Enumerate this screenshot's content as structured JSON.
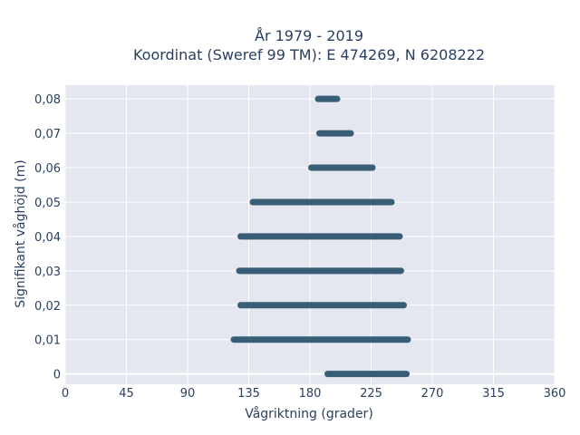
{
  "chart_data": {
    "type": "scatter",
    "title_lines": [
      "År 1979 - 2019",
      "Koordinat (Sweref 99 TM): E 474269, N 6208222"
    ],
    "xlabel": "Vågriktning (grader)",
    "ylabel": "Signifikant våghöjd (m)",
    "xlim": [
      0,
      360
    ],
    "ylim": [
      -0.003,
      0.084
    ],
    "x_ticks": [
      0,
      45,
      90,
      135,
      180,
      225,
      270,
      315,
      360
    ],
    "x_tick_labels": [
      "0",
      "45",
      "90",
      "135",
      "180",
      "225",
      "270",
      "315",
      "360"
    ],
    "y_ticks": [
      0,
      0.01,
      0.02,
      0.03,
      0.04,
      0.05,
      0.06,
      0.07,
      0.08
    ],
    "y_tick_labels": [
      "0",
      "0,01",
      "0,02",
      "0,03",
      "0,04",
      "0,05",
      "0,06",
      "0,07",
      "0,08"
    ],
    "grid": true,
    "marker_color": "#2f5670",
    "plot_bg": "#e5e7f0",
    "series": [
      {
        "y": 0.08,
        "x_min": 186,
        "x_max": 200
      },
      {
        "y": 0.07,
        "x_min": 187,
        "x_max": 210
      },
      {
        "y": 0.06,
        "x_min": 181,
        "x_max": 226
      },
      {
        "y": 0.05,
        "x_min": 138,
        "x_max": 240
      },
      {
        "y": 0.04,
        "x_min": 129,
        "x_max": 246
      },
      {
        "y": 0.03,
        "x_min": 128,
        "x_max": 247
      },
      {
        "y": 0.02,
        "x_min": 129,
        "x_max": 249
      },
      {
        "y": 0.01,
        "x_min": 124,
        "x_max": 252
      },
      {
        "y": 0.0,
        "x_min": 193,
        "x_max": 251
      }
    ]
  }
}
